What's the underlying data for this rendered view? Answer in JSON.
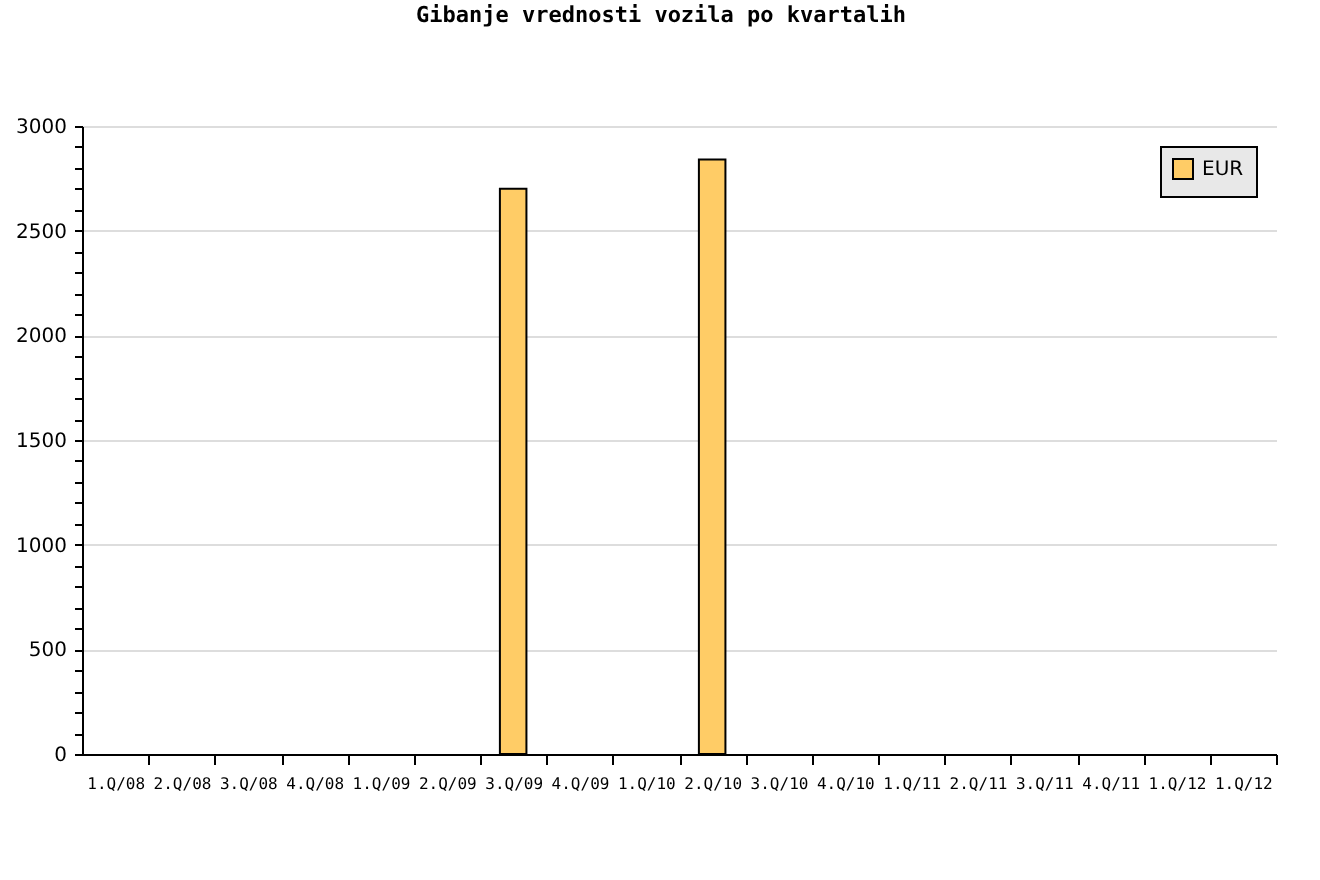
{
  "chart_data": {
    "type": "bar",
    "title": "Gibanje vrednosti vozila po kvartalih",
    "categories": [
      "1.Q/08",
      "2.Q/08",
      "3.Q/08",
      "4.Q/08",
      "1.Q/09",
      "2.Q/09",
      "3.Q/09",
      "4.Q/09",
      "1.Q/10",
      "2.Q/10",
      "3.Q/10",
      "4.Q/10",
      "1.Q/11",
      "2.Q/11",
      "3.Q/11",
      "4.Q/11",
      "1.Q/12",
      "1.Q/12"
    ],
    "series": [
      {
        "name": "EUR",
        "color": "#ffcc66",
        "values": [
          null,
          null,
          null,
          null,
          null,
          null,
          2700,
          null,
          null,
          2840,
          null,
          null,
          null,
          null,
          null,
          null,
          null,
          null
        ]
      }
    ],
    "ylim": [
      0,
      3000
    ],
    "yticks": [
      0,
      {
        "value": 100,
        "label": null
      },
      {
        "value": 200,
        "label": null
      },
      {
        "value": 300,
        "label": null
      },
      {
        "value": 400,
        "label": null
      },
      500,
      {
        "value": 600,
        "label": null
      },
      {
        "value": 700,
        "label": null
      },
      {
        "value": 800,
        "label": null
      },
      {
        "value": 900,
        "label": null
      },
      1000,
      {
        "value": 1100,
        "label": null
      },
      {
        "value": 1200,
        "label": null
      },
      {
        "value": 1300,
        "label": null
      },
      {
        "value": 1400,
        "label": null
      },
      1500,
      {
        "value": 1600,
        "label": null
      },
      {
        "value": 1700,
        "label": null
      },
      {
        "value": 1800,
        "label": null
      },
      {
        "value": 1900,
        "label": null
      },
      2000,
      {
        "value": 2100,
        "label": null
      },
      {
        "value": 2200,
        "label": null
      },
      {
        "value": 2300,
        "label": null
      },
      {
        "value": 2400,
        "label": null
      },
      2500,
      {
        "value": 2600,
        "label": null
      },
      {
        "value": 2700,
        "label": null
      },
      {
        "value": 2800,
        "label": null
      },
      {
        "value": 2900,
        "label": null
      },
      3000
    ],
    "grid": "y",
    "legend": "top right"
  }
}
